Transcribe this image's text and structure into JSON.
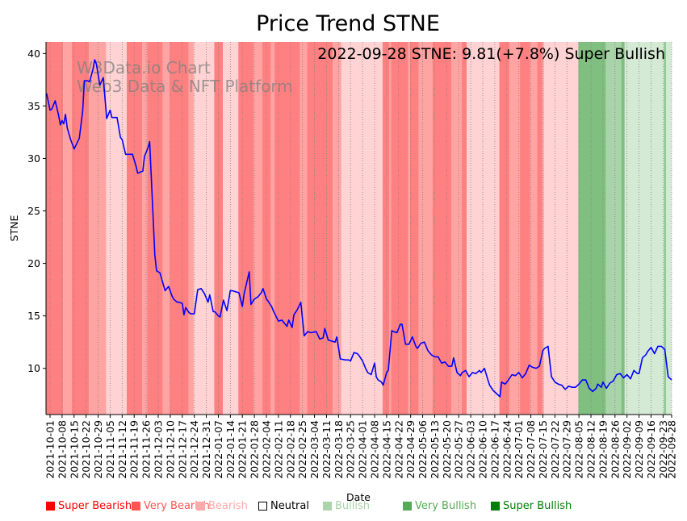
{
  "chart_data": {
    "type": "line",
    "title": "Price Trend STNE",
    "annotation": "2022-09-28 STNE: 9.81(+7.8%) Super Bullish",
    "watermark": [
      "W3Data.io Chart",
      "Web3 Data & NFT Platform"
    ],
    "xlabel": "Date",
    "ylabel": "STNE",
    "ylim": [
      5.6,
      41.1
    ],
    "yticks": [
      10,
      15,
      20,
      25,
      30,
      35,
      40
    ],
    "x_start": "2021-10-01",
    "x_end": "2022-09-28",
    "xticks": [
      "2021-10-01",
      "2021-10-08",
      "2021-10-15",
      "2021-10-22",
      "2021-10-29",
      "2021-11-05",
      "2021-11-12",
      "2021-11-19",
      "2021-11-26",
      "2021-12-03",
      "2021-12-10",
      "2021-12-17",
      "2021-12-24",
      "2021-12-31",
      "2022-01-07",
      "2022-01-14",
      "2022-01-21",
      "2022-01-28",
      "2022-02-04",
      "2022-02-11",
      "2022-02-18",
      "2022-02-25",
      "2022-03-04",
      "2022-03-11",
      "2022-03-18",
      "2022-03-25",
      "2022-04-01",
      "2022-04-08",
      "2022-04-15",
      "2022-04-22",
      "2022-04-29",
      "2022-05-06",
      "2022-05-13",
      "2022-05-20",
      "2022-05-27",
      "2022-06-03",
      "2022-06-10",
      "2022-06-17",
      "2022-06-24",
      "2022-07-01",
      "2022-07-08",
      "2022-07-15",
      "2022-07-22",
      "2022-07-29",
      "2022-08-05",
      "2022-08-12",
      "2022-08-19",
      "2022-08-26",
      "2022-09-02",
      "2022-09-09",
      "2022-09-16",
      "2022-09-23",
      "2022-09-28"
    ],
    "grid": "x-dotted",
    "line_color": "#0000ff",
    "series": [
      {
        "name": "STNE",
        "day_offsets": [
          -2,
          0,
          1,
          3,
          5,
          6,
          7,
          8,
          9,
          10,
          12,
          14,
          17,
          19,
          20,
          22,
          23,
          25,
          26,
          27,
          29,
          31,
          33,
          35,
          36,
          37,
          39,
          41,
          42,
          44,
          46,
          48,
          50,
          51,
          54,
          55,
          57,
          58,
          61,
          62,
          64,
          67,
          69,
          71,
          72,
          74,
          75,
          77,
          78,
          79,
          81,
          82,
          84,
          86,
          88,
          90,
          92,
          93,
          95,
          96,
          98,
          99,
          101,
          103,
          105,
          106,
          108,
          110,
          112,
          113,
          116,
          117,
          119,
          121,
          123,
          124,
          126,
          127,
          129,
          130,
          133,
          135,
          138,
          139,
          141,
          142,
          144,
          146,
          148,
          150,
          152,
          155,
          157,
          159,
          160,
          162,
          164,
          166,
          167,
          169,
          172,
          174,
          175,
          177,
          179,
          180,
          182,
          184,
          185,
          187,
          189,
          190,
          191,
          193,
          194,
          196,
          197,
          199,
          200,
          202,
          204,
          205,
          207,
          209,
          211,
          213,
          214,
          216,
          218,
          220,
          222,
          224,
          226,
          228,
          230,
          232,
          234,
          235,
          237,
          239,
          240,
          242,
          244,
          246,
          248,
          250,
          251,
          253,
          255,
          256,
          258,
          260,
          262,
          263,
          265,
          267,
          269,
          271,
          273,
          275,
          277,
          279,
          281,
          283,
          285,
          287,
          288,
          290,
          292,
          294,
          296,
          298,
          300,
          302,
          304,
          306,
          308,
          310,
          312,
          314,
          316,
          318,
          319,
          321,
          322,
          324,
          326,
          328,
          330,
          332,
          334,
          336,
          338,
          340,
          342,
          343,
          345,
          347,
          348,
          350,
          352,
          354,
          356,
          358,
          360,
          362
        ],
        "values": [
          36.2,
          34.6,
          34.7,
          35.5,
          34.1,
          33.2,
          33.6,
          33.3,
          34.2,
          32.9,
          31.8,
          30.9,
          31.9,
          34.5,
          37.4,
          37.4,
          37.3,
          38.5,
          39.4,
          39.0,
          37.0,
          37.7,
          33.8,
          34.6,
          33.9,
          33.9,
          33.9,
          32.0,
          31.8,
          30.4,
          30.4,
          30.4,
          29.3,
          28.6,
          28.8,
          30.2,
          31.0,
          31.6,
          20.8,
          19.3,
          19.1,
          17.4,
          17.8,
          16.9,
          16.6,
          16.3,
          16.3,
          16.2,
          15.1,
          15.8,
          15.3,
          15.2,
          15.2,
          17.5,
          17.6,
          17.1,
          16.3,
          17.0,
          15.4,
          15.4,
          15.0,
          14.9,
          16.5,
          15.5,
          17.4,
          17.4,
          17.3,
          17.2,
          15.9,
          17.1,
          19.2,
          16.1,
          16.6,
          16.8,
          17.2,
          17.6,
          16.6,
          16.4,
          15.9,
          15.5,
          14.5,
          14.6,
          14.0,
          14.6,
          13.9,
          15.1,
          15.6,
          16.3,
          13.1,
          13.5,
          13.4,
          13.5,
          12.8,
          12.9,
          13.8,
          12.7,
          12.6,
          12.5,
          13.0,
          10.9,
          10.8,
          10.8,
          10.7,
          11.5,
          11.4,
          11.2,
          10.7,
          9.9,
          9.6,
          9.4,
          10.5,
          9.2,
          8.9,
          8.7,
          8.4,
          9.6,
          9.8,
          13.6,
          13.5,
          13.4,
          14.2,
          14.2,
          12.3,
          12.3,
          13.0,
          12.1,
          11.9,
          12.4,
          12.5,
          11.7,
          11.3,
          11.1,
          11.1,
          10.5,
          10.6,
          10.2,
          10.2,
          11.0,
          9.6,
          9.3,
          9.6,
          9.8,
          9.2,
          9.6,
          9.5,
          9.8,
          9.6,
          10.0,
          8.9,
          8.4,
          7.9,
          7.6,
          7.3,
          8.7,
          8.5,
          8.9,
          9.4,
          9.3,
          9.6,
          9.1,
          9.5,
          10.3,
          10.1,
          10.0,
          10.2,
          11.7,
          11.9,
          12.1,
          9.2,
          8.7,
          8.5,
          8.4,
          8.0,
          8.3,
          8.2,
          8.2,
          8.5,
          8.9,
          8.9,
          8.1,
          7.8,
          8.1,
          8.5,
          8.2,
          8.7,
          8.1,
          8.6,
          8.8,
          9.4,
          9.5,
          9.1,
          9.4,
          9.0,
          9.8,
          9.5,
          9.5,
          11.0,
          11.3,
          11.6,
          12.0,
          11.4,
          12.1,
          12.1,
          11.8,
          9.2,
          8.9,
          10.0,
          9.8,
          9.7,
          8.9,
          8.6,
          8.3,
          9.3,
          9.7,
          9.3,
          9.4,
          9.7,
          9.2,
          9.5,
          9.9,
          9.2,
          8.9,
          9.8
        ]
      }
    ],
    "regime_bands": [
      {
        "start_day": 0,
        "end_day": 10,
        "regime": "Very Bearish"
      },
      {
        "start_day": 10,
        "end_day": 15,
        "regime": "Bearish"
      },
      {
        "start_day": 15,
        "end_day": 25,
        "regime": "Very Bearish"
      },
      {
        "start_day": 25,
        "end_day": 35,
        "regime": "Bearish"
      },
      {
        "start_day": 35,
        "end_day": 47,
        "regime": "Slightly Bearish"
      },
      {
        "start_day": 47,
        "end_day": 56,
        "regime": "Very Bearish"
      },
      {
        "start_day": 56,
        "end_day": 59,
        "regime": "Bearish"
      },
      {
        "start_day": 59,
        "end_day": 68,
        "regime": "Very Bearish"
      },
      {
        "start_day": 68,
        "end_day": 72,
        "regime": "Bearish"
      },
      {
        "start_day": 72,
        "end_day": 83,
        "regime": "Very Bearish"
      },
      {
        "start_day": 83,
        "end_day": 86,
        "regime": "Bearish"
      },
      {
        "start_day": 86,
        "end_day": 98,
        "regime": "Slightly Bearish"
      },
      {
        "start_day": 98,
        "end_day": 103,
        "regime": "Very Bearish"
      },
      {
        "start_day": 103,
        "end_day": 112,
        "regime": "Slightly Bearish"
      },
      {
        "start_day": 112,
        "end_day": 121,
        "regime": "Very Bearish"
      },
      {
        "start_day": 121,
        "end_day": 126,
        "regime": "Bearish"
      },
      {
        "start_day": 126,
        "end_day": 131,
        "regime": "Very Bearish"
      },
      {
        "start_day": 131,
        "end_day": 133,
        "regime": "Bearish"
      },
      {
        "start_day": 133,
        "end_day": 148,
        "regime": "Very Bearish"
      },
      {
        "start_day": 148,
        "end_day": 152,
        "regime": "Bearish"
      },
      {
        "start_day": 152,
        "end_day": 167,
        "regime": "Very Bearish"
      },
      {
        "start_day": 167,
        "end_day": 172,
        "regime": "Bearish"
      },
      {
        "start_day": 172,
        "end_day": 196,
        "regime": "Slightly Bearish"
      },
      {
        "start_day": 196,
        "end_day": 200,
        "regime": "Very Bearish"
      },
      {
        "start_day": 200,
        "end_day": 201,
        "regime": "Bearish"
      },
      {
        "start_day": 201,
        "end_day": 211,
        "regime": "Very Bearish"
      },
      {
        "start_day": 211,
        "end_day": 212,
        "regime": "Bearish"
      },
      {
        "start_day": 212,
        "end_day": 217,
        "regime": "Very Bearish"
      },
      {
        "start_day": 217,
        "end_day": 225,
        "regime": "Bearish"
      },
      {
        "start_day": 225,
        "end_day": 236,
        "regime": "Very Bearish"
      },
      {
        "start_day": 236,
        "end_day": 242,
        "regime": "Bearish"
      },
      {
        "start_day": 242,
        "end_day": 245,
        "regime": "Very Bearish"
      },
      {
        "start_day": 245,
        "end_day": 264,
        "regime": "Slightly Bearish"
      },
      {
        "start_day": 264,
        "end_day": 270,
        "regime": "Very Bearish"
      },
      {
        "start_day": 270,
        "end_day": 276,
        "regime": "Bearish"
      },
      {
        "start_day": 276,
        "end_day": 282,
        "regime": "Very Bearish"
      },
      {
        "start_day": 282,
        "end_day": 286,
        "regime": "Bearish"
      },
      {
        "start_day": 286,
        "end_day": 289,
        "regime": "Very Bearish"
      },
      {
        "start_day": 289,
        "end_day": 290,
        "regime": "Bearish"
      },
      {
        "start_day": 290,
        "end_day": 310,
        "regime": "Slightly Bearish"
      },
      {
        "start_day": 310,
        "end_day": 326,
        "regime": "Very Bullish"
      },
      {
        "start_day": 326,
        "end_day": 335,
        "regime": "Bullish"
      },
      {
        "start_day": 335,
        "end_day": 337,
        "regime": "Very Bullish"
      },
      {
        "start_day": 337,
        "end_day": 360,
        "regime": "Slightly Bullish"
      },
      {
        "start_day": 360,
        "end_day": 361,
        "regime": "Very Bullish"
      },
      {
        "start_day": 361,
        "end_day": 365,
        "regime": "Slightly Bullish"
      },
      {
        "start_day": 365,
        "end_day": 368,
        "regime": "Very Bullish"
      }
    ],
    "regime_colors": {
      "Very Bearish": "#ff8080",
      "Bearish": "#ffa3a3",
      "Slightly Bearish": "#ffd3d3",
      "Slightly Bullish": "#d5ead5",
      "Bullish": "#a9d4a9",
      "Very Bullish": "#80bf80"
    },
    "legend": [
      {
        "label": "Super Bearish",
        "color": "#ff0000",
        "text_color": "#ff0000",
        "filled": true
      },
      {
        "label": "Very Bearish",
        "color": "#ff5555",
        "text_color": "#ff5555",
        "filled": true
      },
      {
        "label": "Bearish",
        "color": "#ffaaaa",
        "text_color": "#ffaaaa",
        "filled": true
      },
      {
        "label": "Neutral",
        "color": "#ffffff",
        "text_color": "#000000",
        "filled": false
      },
      {
        "label": "Bullish",
        "color": "#aad4aa",
        "text_color": "#aad4aa",
        "filled": true
      },
      {
        "label": "Very Bullish",
        "color": "#55aa55",
        "text_color": "#55aa55",
        "filled": true
      },
      {
        "label": "Super Bullish",
        "color": "#008000",
        "text_color": "#008000",
        "filled": true
      }
    ]
  }
}
